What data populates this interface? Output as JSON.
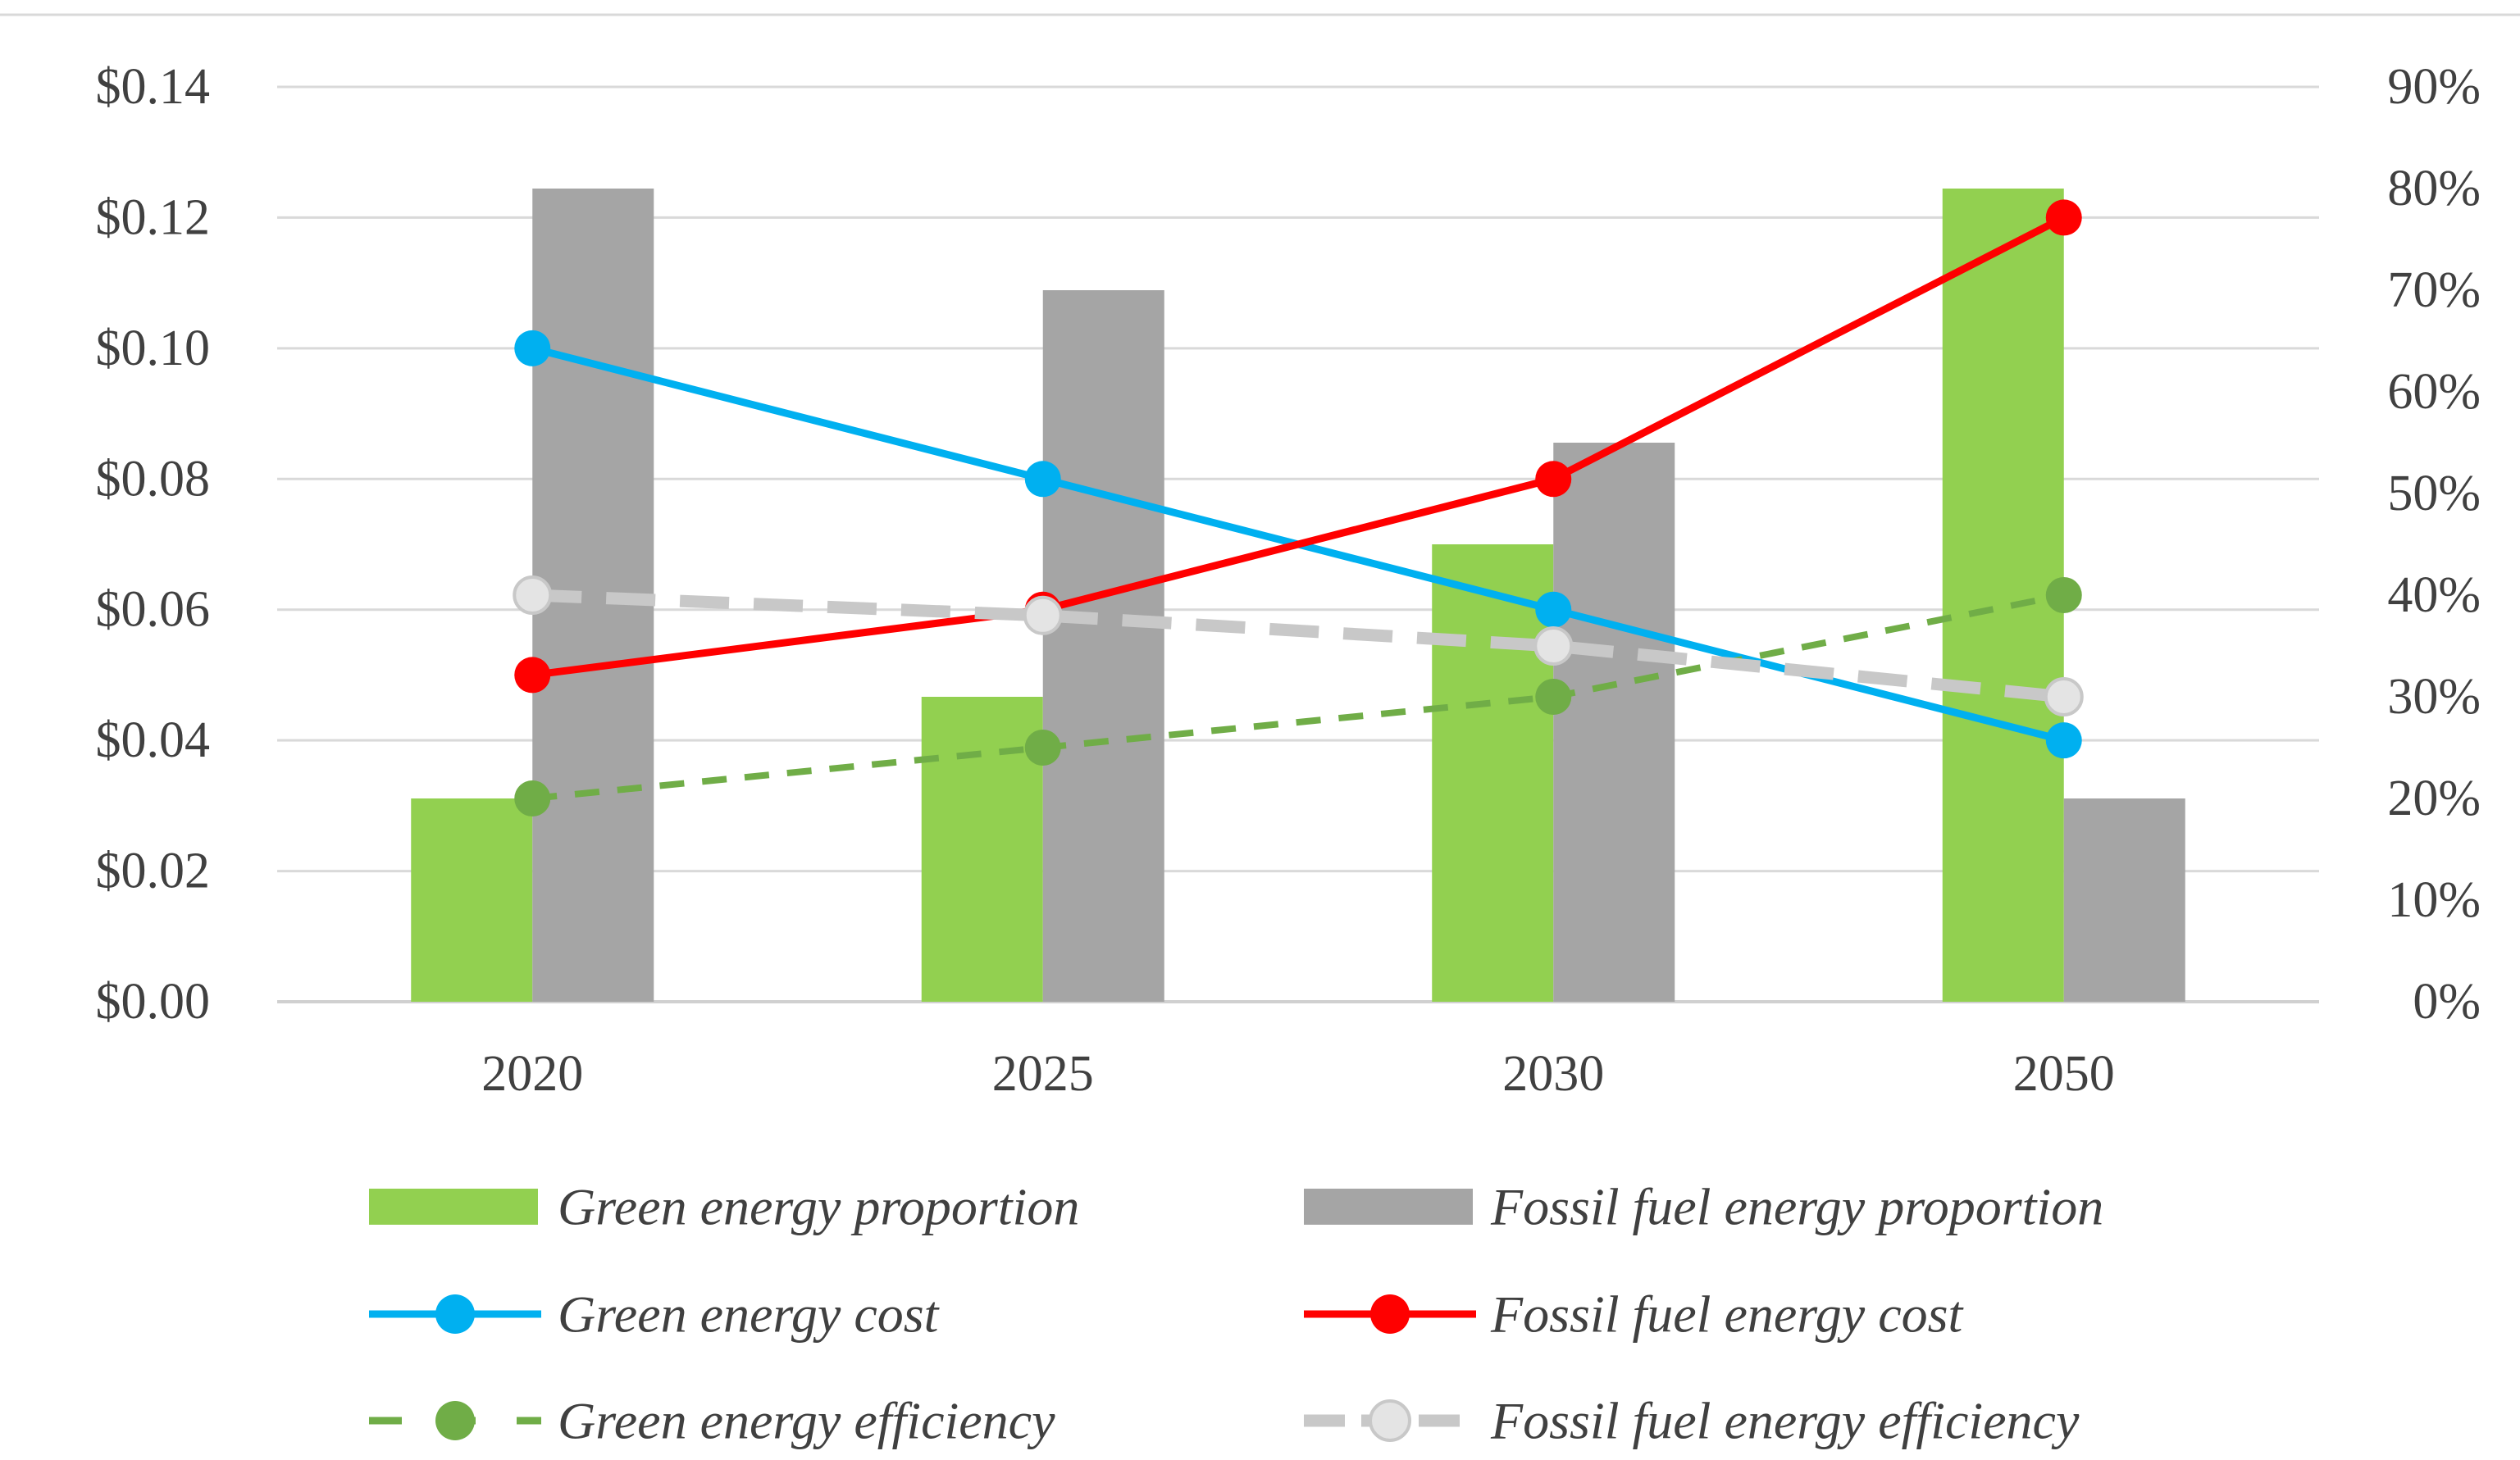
{
  "chart_data": {
    "type": "bar",
    "title": "",
    "categories": [
      "2020",
      "2025",
      "2030",
      "2050"
    ],
    "left_axis": {
      "min": 0,
      "max": 0.14,
      "step": 0.02,
      "tick_labels": [
        "$0.00",
        "$0.02",
        "$0.04",
        "$0.06",
        "$0.08",
        "$0.10",
        "$0.12",
        "$0.14"
      ]
    },
    "right_axis": {
      "min": 0,
      "max": 0.9,
      "step": 0.1,
      "tick_labels": [
        "0%",
        "10%",
        "20%",
        "30%",
        "40%",
        "50%",
        "60%",
        "70%",
        "80%",
        "90%"
      ]
    },
    "series": [
      {
        "id": "green-prop",
        "name": "Green energy proportion",
        "type": "bar",
        "axis": "right",
        "color": "#92D050",
        "values": [
          0.2,
          0.3,
          0.45,
          0.8
        ]
      },
      {
        "id": "fossil-prop",
        "name": "Fossil fuel energy proportion",
        "type": "bar",
        "axis": "right",
        "color": "#A5A5A5",
        "values": [
          0.8,
          0.7,
          0.55,
          0.2
        ]
      },
      {
        "id": "green-cost",
        "name": "Green energy cost",
        "type": "line",
        "axis": "left",
        "color": "#00B0F0",
        "dash": "solid",
        "values": [
          0.1,
          0.08,
          0.06,
          0.04
        ]
      },
      {
        "id": "fossil-cost",
        "name": "Fossil fuel energy cost",
        "type": "line",
        "axis": "left",
        "color": "#FF0000",
        "dash": "solid",
        "values": [
          0.05,
          0.06,
          0.08,
          0.12
        ]
      },
      {
        "id": "green-eff",
        "name": "Green energy efficiency",
        "type": "line",
        "axis": "right",
        "color": "#70AD47",
        "dash": "dash",
        "values": [
          0.2,
          0.25,
          0.3,
          0.4
        ]
      },
      {
        "id": "fossil-eff",
        "name": "Fossil fuel energy efficiency",
        "type": "line",
        "axis": "right",
        "color": "#C8C8C8",
        "marker_fill": "#E4E4E4",
        "dash": "longdash",
        "values": [
          0.4,
          0.38,
          0.35,
          0.3
        ]
      }
    ],
    "legend_position": "bottom",
    "gridlines": true
  }
}
